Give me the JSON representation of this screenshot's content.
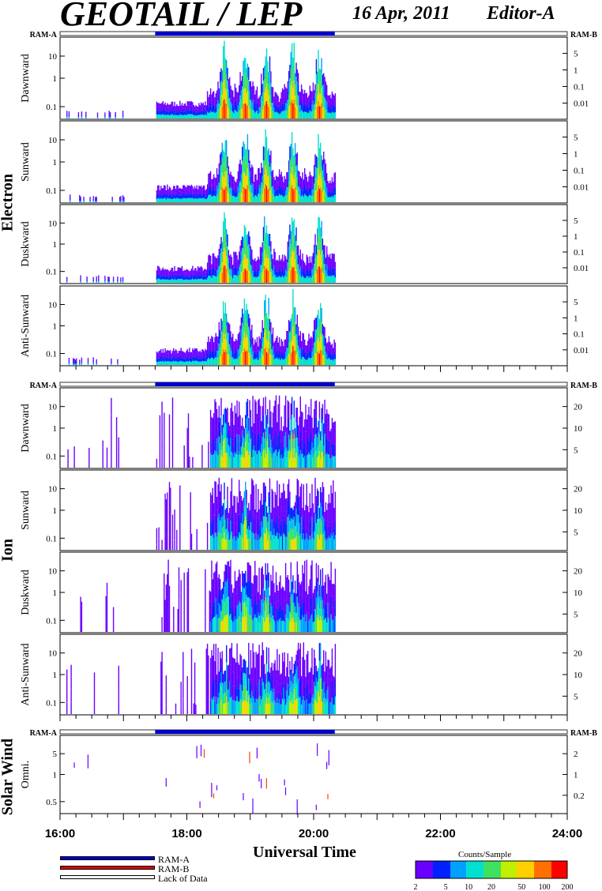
{
  "header": {
    "title": "GEOTAIL / LEP",
    "date": "16 Apr, 2011",
    "editor": "Editor-A"
  },
  "groups": {
    "electron": "Electron",
    "ion": "Ion",
    "solar_wind": "Solar Wind"
  },
  "ram": {
    "a": "RAM-A",
    "b": "RAM-B"
  },
  "xaxis": {
    "label": "Universal Time",
    "ticks": [
      "16:00",
      "18:00",
      "20:00",
      "22:00",
      "24:00"
    ]
  },
  "legend": {
    "ram_a": "RAM-A",
    "ram_b": "RAM-B",
    "lack": "Lack of Data"
  },
  "colorbar": {
    "title": "Counts/Sample",
    "ticks": [
      "2",
      "5",
      "10",
      "20",
      "50",
      "100",
      "200"
    ]
  },
  "colors": {
    "ram_a": "#0000cc",
    "ram_b": "#dd0000"
  },
  "chart_data": {
    "type": "heatmap",
    "x_range": [
      "16:00",
      "24:00"
    ],
    "data_coverage": {
      "segments": [
        [
          "16:05",
          "17:00"
        ],
        [
          "17:30",
          "20:20"
        ]
      ]
    },
    "ram_a_bar": [
      [
        "17:30",
        "20:20"
      ]
    ],
    "panels": [
      {
        "id": "e-dawn",
        "label": "Dawnward",
        "group": "Electron",
        "left_ticks": [
          "10",
          "1",
          "0.1"
        ],
        "right_ticks": [
          "5",
          "1",
          "0.1",
          "0.01"
        ]
      },
      {
        "id": "e-sun",
        "label": "Sunward",
        "group": "Electron",
        "left_ticks": [
          "10",
          "1",
          "0.1"
        ],
        "right_ticks": [
          "5",
          "1",
          "0.1",
          "0.01"
        ]
      },
      {
        "id": "e-dusk",
        "label": "Duskward",
        "group": "Electron",
        "left_ticks": [
          "10",
          "1",
          "0.1"
        ],
        "right_ticks": [
          "5",
          "1",
          "0.1",
          "0.01"
        ]
      },
      {
        "id": "e-anti",
        "label": "Anti-Sunward",
        "group": "Electron",
        "left_ticks": [
          "10",
          "1",
          "0.1"
        ],
        "right_ticks": [
          "5",
          "1",
          "0.1",
          "0.01"
        ]
      },
      {
        "id": "i-dawn",
        "label": "Dawnward",
        "group": "Ion",
        "left_ticks": [
          "10",
          "1",
          "0.1"
        ],
        "right_ticks": [
          "20",
          "10",
          "5"
        ]
      },
      {
        "id": "i-sun",
        "label": "Sunward",
        "group": "Ion",
        "left_ticks": [
          "10",
          "1",
          "0.1"
        ],
        "right_ticks": [
          "20",
          "10",
          "5"
        ]
      },
      {
        "id": "i-dusk",
        "label": "Duskward",
        "group": "Ion",
        "left_ticks": [
          "10",
          "1",
          "0.1"
        ],
        "right_ticks": [
          "20",
          "10",
          "5"
        ]
      },
      {
        "id": "i-anti",
        "label": "Anti-Sunward",
        "group": "Ion",
        "left_ticks": [
          "10",
          "1",
          "0.1"
        ],
        "right_ticks": [
          "20",
          "10",
          "5"
        ]
      },
      {
        "id": "sw-omni",
        "label": "Omni.",
        "group": "Solar Wind",
        "left_ticks": [
          "5",
          "1",
          "0.5"
        ],
        "right_ticks": [
          "2",
          "1",
          "0.2"
        ]
      }
    ],
    "electron_peaks": [
      "18:35",
      "18:55",
      "19:15",
      "19:40",
      "20:05"
    ]
  }
}
